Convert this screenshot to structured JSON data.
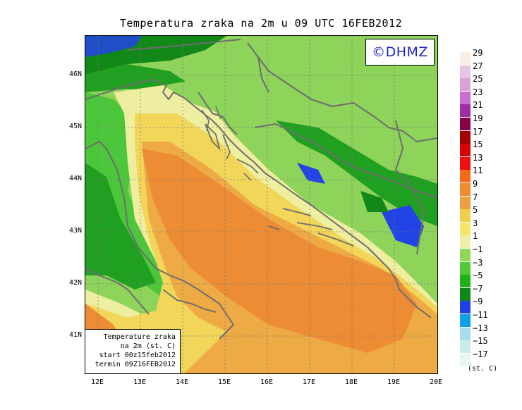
{
  "title": "Temperatura zraka na 2m u 09 UTC 16FEB2012",
  "logo": "©DHMZ",
  "info_box": {
    "line1": "Temperature zraka",
    "line2": "na 2m (st. C)",
    "line3": "start 00z15feb2012",
    "line4": "termin 09Z16FEB2012"
  },
  "lat_labels": [
    "46N",
    "45N",
    "44N",
    "43N",
    "42N",
    "41N"
  ],
  "lon_labels": [
    "12E",
    "13E",
    "14E",
    "15E",
    "16E",
    "17E",
    "18E",
    "19E",
    "20E"
  ],
  "legend": {
    "labels": [
      "29",
      "27",
      "25",
      "23",
      "21",
      "19",
      "17",
      "15",
      "13",
      "11",
      "9",
      "7",
      "5",
      "3",
      "1",
      "−1",
      "−3",
      "−5",
      "−7",
      "−9",
      "−11",
      "−13",
      "−15",
      "−17"
    ],
    "colors": [
      "#fbeee4",
      "#e8c5e4",
      "#dba0d8",
      "#c86ed0",
      "#9b2fa0",
      "#8a0044",
      "#a30000",
      "#d80000",
      "#f01010",
      "#f36a18",
      "#ee8c30",
      "#eea040",
      "#edd04a",
      "#f0e866",
      "#eef0a8",
      "#8fd85a",
      "#50c83a",
      "#20b018",
      "#108818",
      "#2040e8",
      "#10a0e8",
      "#a8dce8",
      "#c8ece8",
      "#e6f6f2"
    ],
    "units": "(st. C)"
  },
  "map_colors": {
    "sea_orange": "#ec8c34",
    "sea_light_orange": "#eeaa44",
    "sea_yellow": "#f2d65a",
    "pale_yellow": "#eeeea0",
    "light_green": "#8ed35a",
    "green": "#4cc63a",
    "dark_green": "#20a020",
    "deep_green": "#118818",
    "blue": "#2244e6",
    "border": "#707070"
  }
}
